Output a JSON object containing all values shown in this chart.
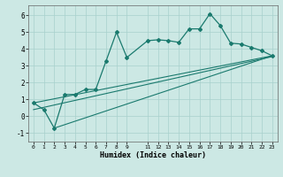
{
  "title": "",
  "xlabel": "Humidex (Indice chaleur)",
  "bg_color": "#cce8e4",
  "line_color": "#1a7a6e",
  "xlim": [
    -0.5,
    23.5
  ],
  "ylim": [
    -1.5,
    6.6
  ],
  "yticks": [
    -1,
    0,
    1,
    2,
    3,
    4,
    5,
    6
  ],
  "xticks": [
    0,
    1,
    2,
    3,
    4,
    5,
    6,
    7,
    8,
    9,
    11,
    12,
    13,
    14,
    15,
    16,
    17,
    18,
    19,
    20,
    21,
    22,
    23
  ],
  "series1_x": [
    0,
    1,
    2,
    3,
    4,
    5,
    6,
    7,
    8,
    9,
    11,
    12,
    13,
    14,
    15,
    16,
    17,
    18,
    19,
    20,
    21,
    22,
    23
  ],
  "series1_y": [
    0.8,
    0.4,
    -0.7,
    1.3,
    1.3,
    1.6,
    1.6,
    3.3,
    5.0,
    3.5,
    4.5,
    4.55,
    4.5,
    4.4,
    5.2,
    5.2,
    6.1,
    5.4,
    4.35,
    4.3,
    4.1,
    3.9,
    3.6
  ],
  "series2_x": [
    0,
    23
  ],
  "series2_y": [
    0.8,
    3.6
  ],
  "series3_x": [
    2,
    23
  ],
  "series3_y": [
    -0.7,
    3.6
  ],
  "series4_x": [
    0,
    23
  ],
  "series4_y": [
    0.4,
    3.55
  ],
  "grid_color": "#a8d0cc"
}
